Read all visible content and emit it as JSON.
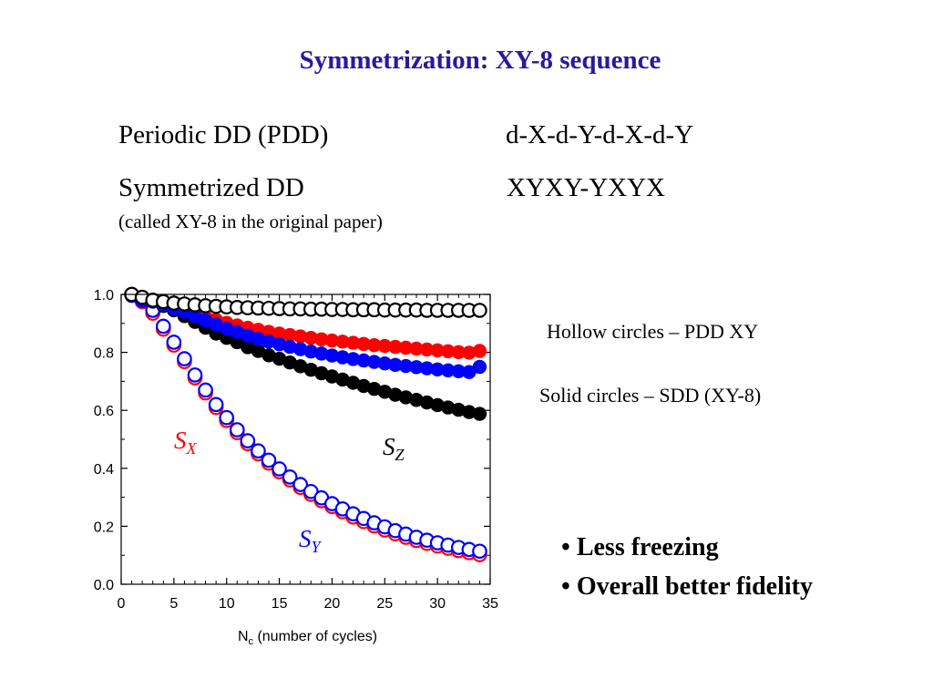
{
  "slide": {
    "title": "Symmetrization: XY-8 sequence",
    "rows": [
      {
        "name": "Periodic DD (PDD)",
        "sequence": "d-X-d-Y-d-X-d-Y"
      },
      {
        "name": "Symmetrized DD",
        "sequence": "XYXY-YXYX",
        "note": "(called XY-8 in the original paper)"
      }
    ],
    "legend_notes": [
      "Hollow circles – PDD XY",
      "Solid circles – SDD (XY-8)"
    ],
    "bullets": [
      "Less freezing",
      "Overall better fidelity"
    ]
  },
  "colors": {
    "title": "#2a1a99",
    "red": "#ff0000",
    "blue": "#0000ff",
    "black": "#000000"
  },
  "chart_data": {
    "type": "scatter",
    "xlabel_main": "N",
    "xlabel_sub": "c",
    "xlabel_rest": " (number of cycles)",
    "xlim": [
      0,
      35
    ],
    "ylim": [
      0,
      1.0
    ],
    "xticks": [
      "0",
      "5",
      "10",
      "15",
      "20",
      "25",
      "30",
      "35"
    ],
    "yticks": [
      "0.0",
      "0.2",
      "0.4",
      "0.6",
      "0.8",
      "1.0"
    ],
    "x": [
      1,
      2,
      3,
      4,
      5,
      6,
      7,
      8,
      9,
      10,
      11,
      12,
      13,
      14,
      15,
      16,
      17,
      18,
      19,
      20,
      21,
      22,
      23,
      24,
      25,
      26,
      27,
      28,
      29,
      30,
      31,
      32,
      33,
      34
    ],
    "series": [
      {
        "key": "pdd_sx",
        "color": "#ff0000",
        "filled": false,
        "values": [
          1.0,
          0.975,
          0.935,
          0.88,
          0.825,
          0.768,
          0.712,
          0.66,
          0.61,
          0.565,
          0.523,
          0.485,
          0.45,
          0.418,
          0.388,
          0.36,
          0.334,
          0.31,
          0.288,
          0.268,
          0.25,
          0.232,
          0.216,
          0.201,
          0.187,
          0.174,
          0.162,
          0.151,
          0.141,
          0.132,
          0.124,
          0.116,
          0.109,
          0.102
        ]
      },
      {
        "key": "pdd_sy",
        "color": "#0000ff",
        "filled": false,
        "values": [
          1.0,
          0.98,
          0.945,
          0.89,
          0.835,
          0.778,
          0.722,
          0.67,
          0.62,
          0.575,
          0.533,
          0.495,
          0.46,
          0.428,
          0.398,
          0.37,
          0.344,
          0.32,
          0.298,
          0.278,
          0.26,
          0.243,
          0.227,
          0.212,
          0.198,
          0.185,
          0.173,
          0.162,
          0.152,
          0.143,
          0.135,
          0.127,
          0.12,
          0.114
        ]
      },
      {
        "key": "sdd_sz",
        "color": "#000000",
        "filled": true,
        "values": [
          0.995,
          0.99,
          0.975,
          0.96,
          0.945,
          0.925,
          0.905,
          0.885,
          0.865,
          0.85,
          0.835,
          0.818,
          0.805,
          0.79,
          0.778,
          0.765,
          0.752,
          0.74,
          0.728,
          0.717,
          0.706,
          0.695,
          0.684,
          0.674,
          0.664,
          0.654,
          0.645,
          0.636,
          0.627,
          0.618,
          0.61,
          0.602,
          0.594,
          0.588
        ]
      },
      {
        "key": "sdd_sx",
        "color": "#ff0000",
        "filled": true,
        "values": [
          0.995,
          0.99,
          0.98,
          0.97,
          0.96,
          0.948,
          0.935,
          0.923,
          0.912,
          0.902,
          0.893,
          0.885,
          0.878,
          0.871,
          0.865,
          0.86,
          0.855,
          0.85,
          0.845,
          0.841,
          0.837,
          0.833,
          0.829,
          0.825,
          0.822,
          0.819,
          0.816,
          0.813,
          0.81,
          0.807,
          0.804,
          0.801,
          0.799,
          0.805
        ]
      },
      {
        "key": "sdd_sy",
        "color": "#0000ff",
        "filled": true,
        "values": [
          0.995,
          0.985,
          0.975,
          0.965,
          0.952,
          0.94,
          0.925,
          0.91,
          0.896,
          0.882,
          0.87,
          0.858,
          0.847,
          0.837,
          0.828,
          0.819,
          0.811,
          0.803,
          0.796,
          0.789,
          0.783,
          0.777,
          0.772,
          0.767,
          0.762,
          0.757,
          0.753,
          0.749,
          0.745,
          0.741,
          0.738,
          0.735,
          0.732,
          0.75
        ]
      },
      {
        "key": "pdd_sz",
        "color": "#000000",
        "filled": false,
        "values": [
          1.0,
          0.99,
          0.98,
          0.975,
          0.97,
          0.967,
          0.964,
          0.961,
          0.959,
          0.957,
          0.955,
          0.954,
          0.953,
          0.952,
          0.951,
          0.95,
          0.95,
          0.949,
          0.949,
          0.948,
          0.948,
          0.947,
          0.947,
          0.947,
          0.946,
          0.946,
          0.946,
          0.946,
          0.945,
          0.945,
          0.945,
          0.945,
          0.945,
          0.945
        ]
      }
    ],
    "series_labels": [
      {
        "main": "S",
        "sub": "X",
        "color": "#ff0000"
      },
      {
        "main": "S",
        "sub": "Z",
        "color": "#000000"
      },
      {
        "main": "S",
        "sub": "Y",
        "color": "#0000ff"
      }
    ]
  }
}
